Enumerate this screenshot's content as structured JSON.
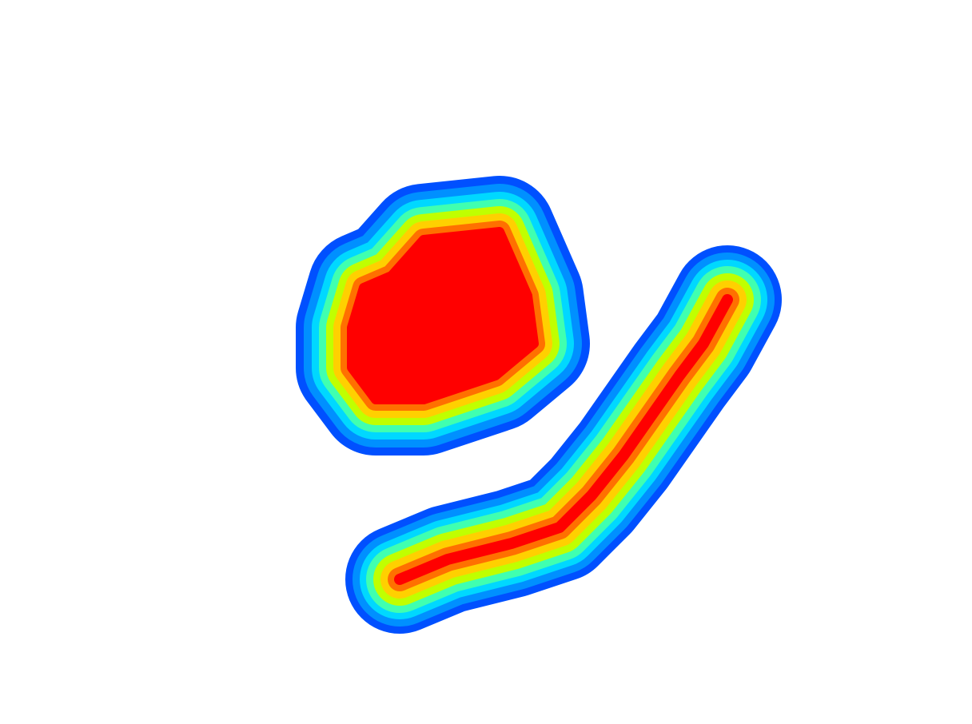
{
  "image": {
    "background": "#ffffff",
    "colormap": [
      "#0050ff",
      "#0090ff",
      "#00d8ff",
      "#40ffb0",
      "#c0ff00",
      "#ffd000",
      "#ff7000",
      "#ff0000"
    ],
    "shapes": [
      "blob",
      "arc"
    ]
  }
}
